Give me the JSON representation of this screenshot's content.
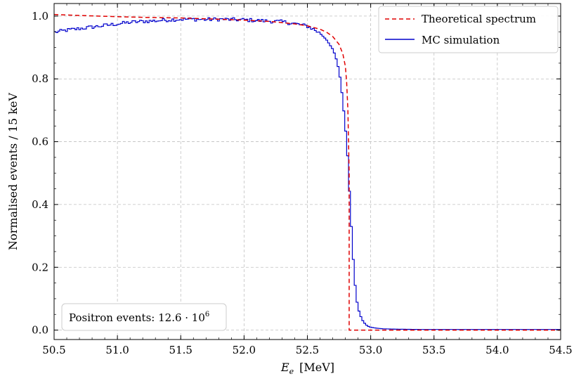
{
  "chart_data": {
    "type": "line",
    "title": "",
    "xlabel_main": "E",
    "xlabel_sub": "e",
    "xlabel_unit": "[MeV]",
    "ylabel": "Normalised events / 15 keV",
    "xlim": [
      50.5,
      54.5
    ],
    "ylim": [
      -0.03,
      1.04
    ],
    "xticks": [
      50.5,
      51.0,
      51.5,
      52.0,
      52.5,
      53.0,
      53.5,
      54.0,
      54.5
    ],
    "xtick_labels": [
      "50.5",
      "51.0",
      "51.5",
      "52.0",
      "52.5",
      "53.0",
      "53.5",
      "54.0",
      "54.5"
    ],
    "yticks": [
      0.0,
      0.2,
      0.4,
      0.6,
      0.8,
      1.0
    ],
    "ytick_labels": [
      "0.0",
      "0.2",
      "0.4",
      "0.6",
      "0.8",
      "1.0"
    ],
    "grid": true,
    "legend_position": "top-right",
    "annotation_prefix": "Positron events: 12.6 · 10",
    "annotation_exponent": "6",
    "annotation_position": "bottom-left",
    "colors": {
      "theory": "#e00000",
      "mc": "#0000cc",
      "grid": "#bfbfbf"
    },
    "series": [
      {
        "name": "Theoretical spectrum",
        "style": "dashed",
        "x": [
          50.5,
          50.7,
          51.0,
          51.2,
          51.5,
          51.8,
          52.0,
          52.2,
          52.4,
          52.5,
          52.6,
          52.65,
          52.7,
          52.75,
          52.78,
          52.8,
          52.81,
          52.82,
          52.825,
          52.83,
          52.83,
          54.5
        ],
        "y": [
          1.005,
          1.002,
          0.998,
          0.996,
          0.994,
          0.99,
          0.987,
          0.983,
          0.975,
          0.969,
          0.958,
          0.949,
          0.935,
          0.91,
          0.88,
          0.84,
          0.79,
          0.7,
          0.6,
          0.5,
          0.0,
          0.0
        ]
      },
      {
        "name": "MC simulation",
        "style": "solid-step",
        "x": [
          50.5,
          50.6,
          50.7,
          50.8,
          50.9,
          51.0,
          51.1,
          51.2,
          51.3,
          51.4,
          51.5,
          51.6,
          51.7,
          51.8,
          51.9,
          52.0,
          52.1,
          52.2,
          52.3,
          52.4,
          52.5,
          52.55,
          52.6,
          52.65,
          52.7,
          52.72,
          52.74,
          52.76,
          52.78,
          52.8,
          52.81,
          52.82,
          52.83,
          52.84,
          52.85,
          52.86,
          52.87,
          52.88,
          52.89,
          52.9,
          52.92,
          52.94,
          52.96,
          52.98,
          53.0,
          53.05,
          53.1,
          53.2,
          53.4,
          53.7,
          54.0,
          54.5
        ],
        "y": [
          0.948,
          0.955,
          0.96,
          0.965,
          0.97,
          0.975,
          0.98,
          0.983,
          0.985,
          0.988,
          0.99,
          0.99,
          0.989,
          0.99,
          0.989,
          0.988,
          0.986,
          0.984,
          0.982,
          0.976,
          0.968,
          0.958,
          0.945,
          0.925,
          0.895,
          0.875,
          0.845,
          0.8,
          0.73,
          0.645,
          0.6,
          0.54,
          0.46,
          0.39,
          0.31,
          0.24,
          0.18,
          0.13,
          0.095,
          0.07,
          0.045,
          0.028,
          0.018,
          0.012,
          0.009,
          0.006,
          0.004,
          0.003,
          0.002,
          0.002,
          0.002,
          0.002
        ]
      }
    ]
  }
}
